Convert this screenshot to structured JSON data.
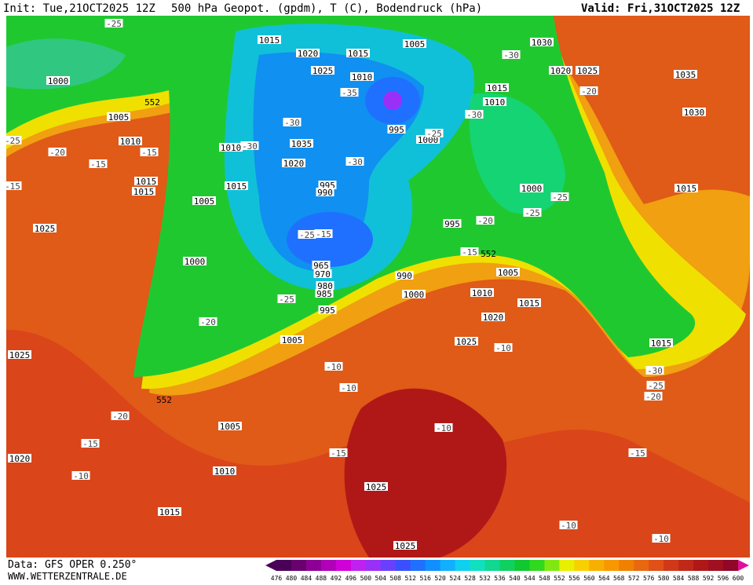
{
  "header": {
    "init": "Init: Tue,21OCT2025 12Z",
    "title": "500 hPa Geopot. (gpdm), T (C), Bodendruck (hPa)",
    "valid": "Valid: Fri,31OCT2025 12Z"
  },
  "map": {
    "isobars": [
      "1015",
      "1020",
      "1015",
      "1005",
      "1030",
      "1000",
      "1025",
      "1010",
      "1020",
      "1025",
      "1035",
      "1005",
      "1015",
      "1010",
      "1030",
      "995",
      "1000",
      "1010",
      "1010",
      "1035",
      "1020",
      "995",
      "990",
      "1015",
      "1015",
      "1015",
      "1005",
      "1000",
      "1015",
      "1025",
      "995",
      "1000",
      "965",
      "970",
      "1005",
      "990",
      "980",
      "985",
      "1000",
      "1010",
      "1015",
      "995",
      "1020",
      "1005",
      "1025",
      "1015",
      "1025",
      "1005",
      "1020",
      "1010",
      "1025",
      "1015",
      "1025"
    ],
    "temperatures": [
      "-25",
      "-30",
      "-20",
      "-35",
      "-30",
      "-30",
      "-25",
      "-25",
      "-30",
      "-20",
      "-15",
      "-15",
      "-30",
      "-15",
      "-25",
      "-20",
      "-25",
      "-25",
      "-15",
      "-15",
      "-25",
      "-20",
      "-10",
      "-10",
      "-10",
      "-30",
      "-25",
      "-20",
      "-20",
      "-10",
      "-15",
      "-15",
      "-15",
      "-10",
      "-10",
      "-10"
    ],
    "contour_552": [
      "552",
      "552",
      "552"
    ]
  },
  "colorbar": {
    "labels": [
      "476",
      "480",
      "484",
      "488",
      "492",
      "496",
      "500",
      "504",
      "508",
      "512",
      "516",
      "520",
      "524",
      "528",
      "532",
      "536",
      "540",
      "544",
      "548",
      "552",
      "556",
      "560",
      "564",
      "568",
      "572",
      "576",
      "580",
      "584",
      "588",
      "592",
      "596",
      "600"
    ],
    "colors": [
      "#4b0058",
      "#6a006e",
      "#8c0094",
      "#b000b8",
      "#d000d8",
      "#c020f0",
      "#9a30f8",
      "#6a40ff",
      "#3a50ff",
      "#2070ff",
      "#1090ff",
      "#10b0ff",
      "#10d0f0",
      "#10e0c0",
      "#10d890",
      "#10d060",
      "#10c830",
      "#30d820",
      "#80e810",
      "#e8f000",
      "#f8d000",
      "#f8b000",
      "#f89800",
      "#f08000",
      "#e86810",
      "#e05018",
      "#d03818",
      "#c02818",
      "#b01818",
      "#a01020",
      "#900828"
    ]
  },
  "footer": {
    "data": "Data: GFS OPER 0.250°",
    "site": "WWW.WETTERZENTRALE.DE"
  }
}
